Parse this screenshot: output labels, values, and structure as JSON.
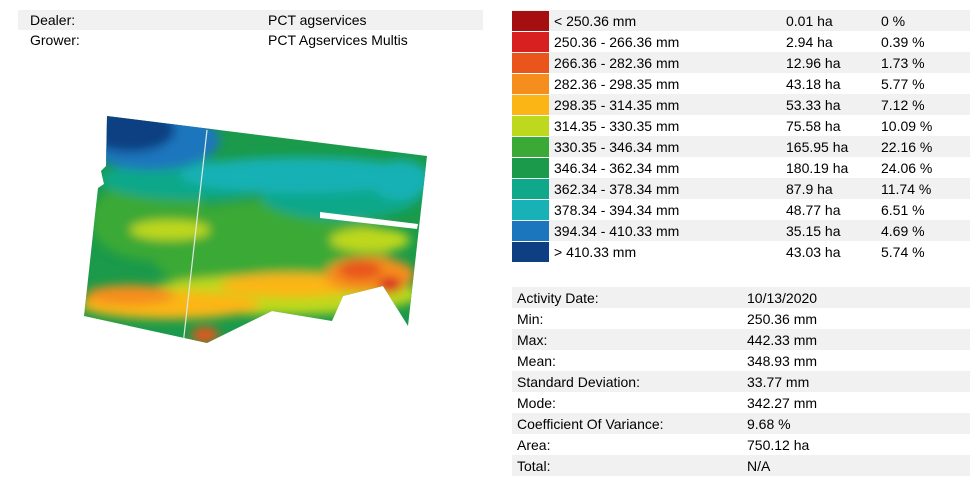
{
  "header": {
    "dealer_label": "Dealer:",
    "dealer_value": "PCT agservices",
    "grower_label": "Grower:",
    "grower_value": "PCT Agservices Multis"
  },
  "legend": [
    {
      "range": "< 250.36 mm",
      "area": "0.01 ha",
      "percent": "0 %",
      "color": "#a50f0f"
    },
    {
      "range": "250.36 - 266.36 mm",
      "area": "2.94 ha",
      "percent": "0.39 %",
      "color": "#d92020"
    },
    {
      "range": "266.36 - 282.36 mm",
      "area": "12.96 ha",
      "percent": "1.73 %",
      "color": "#e9551b"
    },
    {
      "range": "282.36 - 298.35 mm",
      "area": "43.18 ha",
      "percent": "5.77 %",
      "color": "#f58e1c"
    },
    {
      "range": "298.35 - 314.35 mm",
      "area": "53.33 ha",
      "percent": "7.12 %",
      "color": "#fbb615"
    },
    {
      "range": "314.35 - 330.35 mm",
      "area": "75.58 ha",
      "percent": "10.09 %",
      "color": "#bed81e"
    },
    {
      "range": "330.35 - 346.34 mm",
      "area": "165.95 ha",
      "percent": "22.16 %",
      "color": "#3aa935"
    },
    {
      "range": "346.34 - 362.34 mm",
      "area": "180.19 ha",
      "percent": "24.06 %",
      "color": "#1a9a4a"
    },
    {
      "range": "362.34 - 378.34 mm",
      "area": "87.9 ha",
      "percent": "11.74 %",
      "color": "#10a88a"
    },
    {
      "range": "378.34 - 394.34 mm",
      "area": "48.77 ha",
      "percent": "6.51 %",
      "color": "#18b1b5"
    },
    {
      "range": "394.34 - 410.33 mm",
      "area": "35.15 ha",
      "percent": "4.69 %",
      "color": "#1b76bd"
    },
    {
      "range": "> 410.33 mm",
      "area": "43.03 ha",
      "percent": "5.74 %",
      "color": "#0d3f82"
    }
  ],
  "stats": [
    {
      "label": "Activity Date:",
      "value": "10/13/2020"
    },
    {
      "label": "Min:",
      "value": "250.36 mm"
    },
    {
      "label": "Max:",
      "value": "442.33 mm"
    },
    {
      "label": "Mean:",
      "value": "348.93 mm"
    },
    {
      "label": "Standard Deviation:",
      "value": "33.77 mm"
    },
    {
      "label": "Mode:",
      "value": "342.27 mm"
    },
    {
      "label": "Coefficient Of Variance:",
      "value": "9.68 %"
    },
    {
      "label": "Area:",
      "value": "750.12 ha"
    },
    {
      "label": "Total:",
      "value": "N/A"
    }
  ]
}
